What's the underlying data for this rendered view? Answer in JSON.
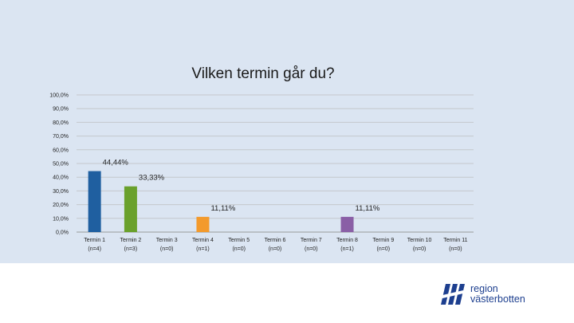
{
  "chart_data": {
    "type": "bar",
    "title": "Vilken termin går du?",
    "categories": [
      [
        "Termin 1",
        "(n=4)"
      ],
      [
        "Termin 2",
        "(n=3)"
      ],
      [
        "Termin 3",
        "(n=0)"
      ],
      [
        "Termin 4",
        "(n=1)"
      ],
      [
        "Termin 5",
        "(n=0)"
      ],
      [
        "Termin 6",
        "(n=0)"
      ],
      [
        "Termin 7",
        "(n=0)"
      ],
      [
        "Termin 8",
        "(n=1)"
      ],
      [
        "Termin 9",
        "(n=0)"
      ],
      [
        "Termin 10",
        "(n=0)"
      ],
      [
        "Termin 11",
        "(n=0)"
      ]
    ],
    "values": [
      44.44,
      33.33,
      0,
      11.11,
      0,
      0,
      0,
      11.11,
      0,
      0,
      0
    ],
    "data_labels": [
      "44,44%",
      "33,33%",
      "",
      "11,11%",
      "",
      "",
      "",
      "11,11%",
      "",
      "",
      ""
    ],
    "bar_colors": [
      "#1f5fa0",
      "#6aa12c",
      "#888888",
      "#f39a2c",
      "#888888",
      "#888888",
      "#888888",
      "#8a5fa6",
      "#888888",
      "#888888",
      "#888888"
    ],
    "ylim": [
      0,
      100
    ],
    "yticks": [
      0,
      10,
      20,
      30,
      40,
      50,
      60,
      70,
      80,
      90,
      100
    ],
    "ytick_labels": [
      "0,0%",
      "10,0%",
      "20,0%",
      "30,0%",
      "40,0%",
      "50,0%",
      "60,0%",
      "70,0%",
      "80,0%",
      "90,0%",
      "100,0%"
    ],
    "grid": true,
    "legend": "none"
  },
  "branding": {
    "logo_line1": "region",
    "logo_line2": "västerbotten",
    "logo_color": "#1d3f8f"
  }
}
